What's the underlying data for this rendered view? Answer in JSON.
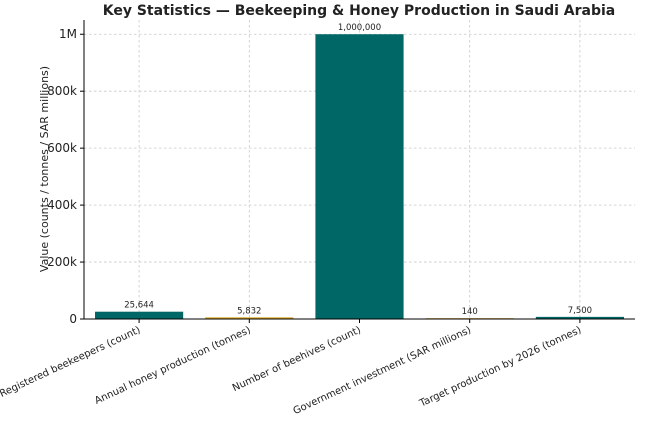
{
  "chart_data": {
    "type": "bar",
    "title": "Key Statistics — Beekeeping & Honey Production in Saudi Arabia",
    "xlabel": "",
    "ylabel": "Value (counts / tonnes / SAR millions)",
    "categories": [
      "Registered beekeepers (count)",
      "Annual honey production (tonnes)",
      "Number of beehives (count)",
      "Government investment (SAR millions)",
      "Target production by 2026 (tonnes)"
    ],
    "values": [
      25644,
      5832,
      1000000,
      140,
      7500
    ],
    "data_labels": [
      "25,644",
      "5,832",
      "1,000,000",
      "140",
      "7,500"
    ],
    "colors": [
      "#006666",
      "#DAA520",
      "#006666",
      "#DAA520",
      "#006666"
    ],
    "ylim": [
      0,
      1050000
    ],
    "yticks": [
      0,
      200000,
      400000,
      600000,
      800000,
      1000000
    ],
    "ytick_labels": [
      "0",
      "200k",
      "400k",
      "600k",
      "800k",
      "1M"
    ],
    "grid": true,
    "legend": "none"
  }
}
